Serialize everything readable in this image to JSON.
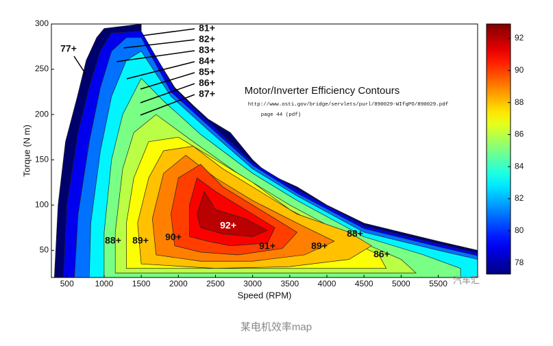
{
  "chart_data": {
    "type": "contour",
    "title": "Motor/Inverter Efficiency Contours",
    "subtitle": "http://www.osti.gov/bridge/servlets/purl/890029-WIfqPO/890029.pdf",
    "note": "page 44 (pdf)",
    "x_label": "Speed (RPM)",
    "y_label": "Torque (N m)",
    "xlim": [
      290,
      6030
    ],
    "ylim": [
      20,
      300
    ],
    "xticks": [
      500,
      1000,
      1500,
      2000,
      2500,
      3000,
      3500,
      4000,
      4500,
      5000,
      5500
    ],
    "yticks": [
      50,
      100,
      150,
      200,
      250,
      300
    ],
    "colormap": "jet",
    "clim": [
      77.3,
      92.9
    ],
    "cticks": [
      78,
      80,
      82,
      84,
      86,
      88,
      90,
      92
    ],
    "regions": [
      {
        "level": 77,
        "x": [
          330,
          380,
          480,
          640,
          760,
          900,
          1000,
          1500,
          1500,
          1950,
          2200,
          2400,
          2700,
          3000,
          3200,
          3600,
          4000,
          4500,
          5000,
          5500,
          6030,
          6030
        ],
        "y": [
          20,
          100,
          170,
          220,
          260,
          285,
          295,
          300,
          290,
          230,
          210,
          195,
          180,
          150,
          135,
          120,
          100,
          80,
          70,
          60,
          50,
          20
        ]
      },
      {
        "level": 79,
        "x": [
          450,
          500,
          650,
          800,
          950,
          1100,
          1500,
          1950,
          2400,
          3000,
          3600,
          4500,
          5500,
          6030,
          6030
        ],
        "y": [
          20,
          100,
          180,
          230,
          270,
          290,
          292,
          228,
          192,
          147,
          117,
          77,
          57,
          47,
          20
        ]
      },
      {
        "level": 81,
        "x": [
          600,
          650,
          800,
          950,
          1100,
          1300,
          1500,
          1900,
          2400,
          3000,
          3600,
          4500,
          5500,
          6030,
          6030
        ],
        "y": [
          20,
          90,
          170,
          230,
          270,
          285,
          285,
          225,
          188,
          144,
          113,
          74,
          54,
          44,
          20
        ]
      },
      {
        "level": 83,
        "x": [
          800,
          820,
          950,
          1100,
          1300,
          1500,
          1900,
          2400,
          3000,
          3600,
          4500,
          5500,
          6030,
          6030
        ],
        "y": [
          20,
          80,
          160,
          220,
          260,
          270,
          220,
          183,
          140,
          110,
          70,
          50,
          40,
          20
        ]
      },
      {
        "level": 85,
        "x": [
          1000,
          1000,
          1100,
          1250,
          1500,
          1800,
          2300,
          3000,
          3600,
          4500,
          5300,
          5800,
          5800
        ],
        "y": [
          20,
          70,
          150,
          200,
          240,
          215,
          178,
          135,
          105,
          65,
          45,
          30,
          20
        ]
      },
      {
        "level": 86,
        "x": [
          1150,
          1150,
          1250,
          1400,
          1700,
          2200,
          2800,
          3500,
          4300,
          5000,
          5200
        ],
        "y": [
          25,
          70,
          140,
          180,
          200,
          170,
          135,
          100,
          65,
          40,
          25
        ]
      },
      {
        "level": 87,
        "x": [
          1300,
          1300,
          1400,
          1600,
          2000,
          2500,
          3000,
          3500,
          4200,
          4700,
          4800
        ],
        "y": [
          30,
          80,
          130,
          170,
          175,
          150,
          125,
          95,
          65,
          45,
          30
        ]
      },
      {
        "level": 88,
        "x": [
          1500,
          1450,
          1600,
          1800,
          2200,
          2600,
          3100,
          3600,
          4300,
          4600,
          4300,
          3500,
          2500
        ],
        "y": [
          35,
          80,
          130,
          160,
          165,
          140,
          115,
          90,
          70,
          55,
          40,
          32,
          30
        ]
      },
      {
        "level": 89,
        "x": [
          1700,
          1650,
          1800,
          2100,
          2500,
          3000,
          3600,
          4100,
          3700,
          3000,
          2300
        ],
        "y": [
          45,
          85,
          135,
          155,
          130,
          105,
          80,
          60,
          45,
          38,
          38
        ]
      },
      {
        "level": 90,
        "x": [
          1950,
          1900,
          2000,
          2300,
          2600,
          3100,
          3600,
          3400,
          2800,
          2300
        ],
        "y": [
          55,
          90,
          130,
          145,
          120,
          95,
          70,
          52,
          45,
          48
        ]
      },
      {
        "level": 91,
        "x": [
          2150,
          2150,
          2250,
          2500,
          2900,
          3300,
          3200,
          2700,
          2400
        ],
        "y": [
          65,
          100,
          130,
          115,
          95,
          75,
          58,
          55,
          60
        ]
      },
      {
        "level": 92,
        "x": [
          2250,
          2350,
          2500,
          2900,
          3200,
          3000,
          2600,
          2300
        ],
        "y": [
          90,
          115,
          95,
          85,
          72,
          65,
          68,
          75
        ]
      }
    ],
    "annotations": [
      "77+",
      "81+",
      "82+",
      "83+",
      "84+",
      "85+",
      "86+",
      "87+",
      "88+",
      "89+",
      "90+",
      "92+",
      "91+",
      "89+",
      "88+",
      "86+"
    ],
    "watermark": "汽车汇"
  },
  "caption": "某电机效率map"
}
